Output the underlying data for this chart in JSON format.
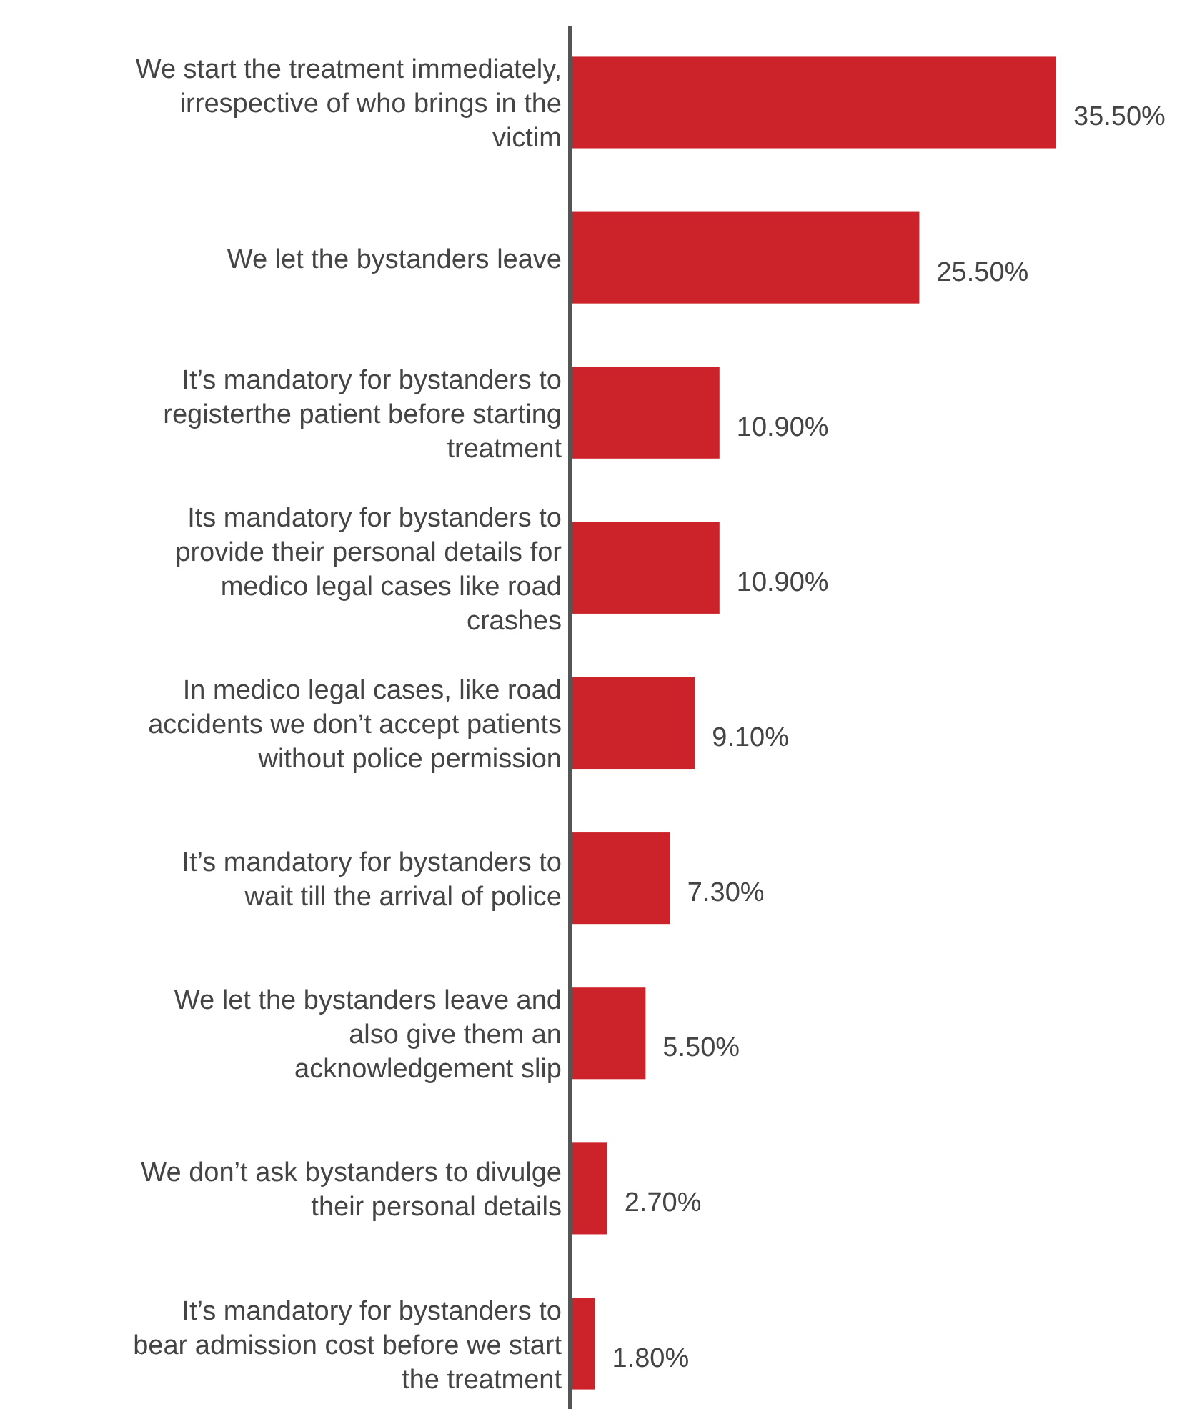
{
  "chart_data": {
    "type": "bar",
    "orientation": "horizontal",
    "categories": [
      "We start the treatment immediately, irrespective of who brings in the victim",
      "We let the bystanders leave",
      "It’s mandatory for bystanders to registerthe patient before starting treatment",
      "Its mandatory for bystanders to provide their personal details for medico legal cases like road crashes",
      "In medico legal cases, like road accidents we don’t accept patients without police permission",
      "It’s mandatory for bystanders to wait till the arrival of police",
      "We let the bystanders leave and also give them an acknowledgement slip",
      "We don’t ask bystanders to divulge their personal details",
      "It’s mandatory for bystanders to bear admission cost before we start the treatment"
    ],
    "values": [
      35.5,
      25.5,
      10.9,
      10.9,
      9.1,
      7.3,
      5.5,
      2.7,
      1.8
    ],
    "value_labels": [
      "35.50%",
      "25.50%",
      "10.90%",
      "10.90%",
      "9.10%",
      "7.30%",
      "5.50%",
      "2.70%",
      "1.80%"
    ],
    "color": "#cc2229"
  }
}
